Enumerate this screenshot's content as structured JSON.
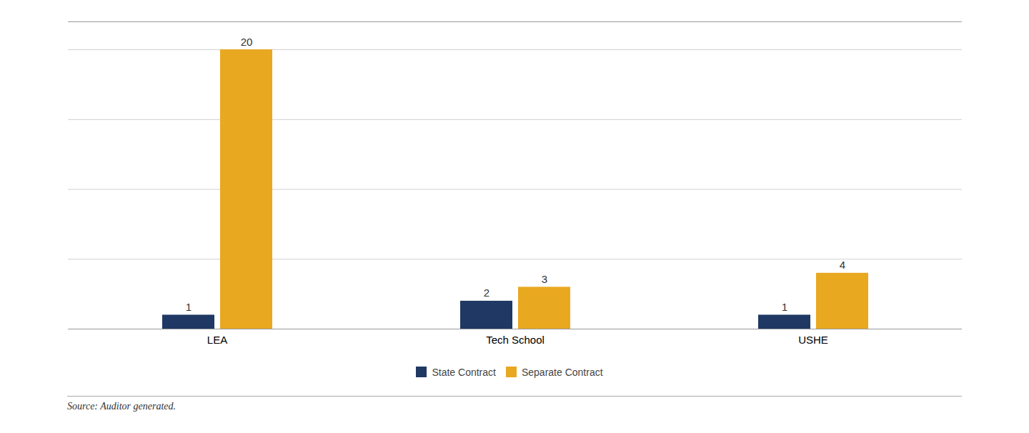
{
  "chart_data": {
    "type": "bar",
    "categories": [
      "LEA",
      "Tech School",
      "USHE"
    ],
    "series": [
      {
        "name": "State Contract",
        "color": "#1f3864",
        "values": [
          1,
          2,
          1
        ]
      },
      {
        "name": "Separate Contract",
        "color": "#e8a820",
        "values": [
          20,
          3,
          4
        ]
      }
    ],
    "ylim": [
      0,
      22
    ],
    "yticks": [
      0,
      5,
      10,
      15,
      20
    ],
    "grid": true,
    "data_labels": true,
    "tick_labels": "x",
    "legend": "bottom",
    "caption": "Source: Auditor generated."
  }
}
